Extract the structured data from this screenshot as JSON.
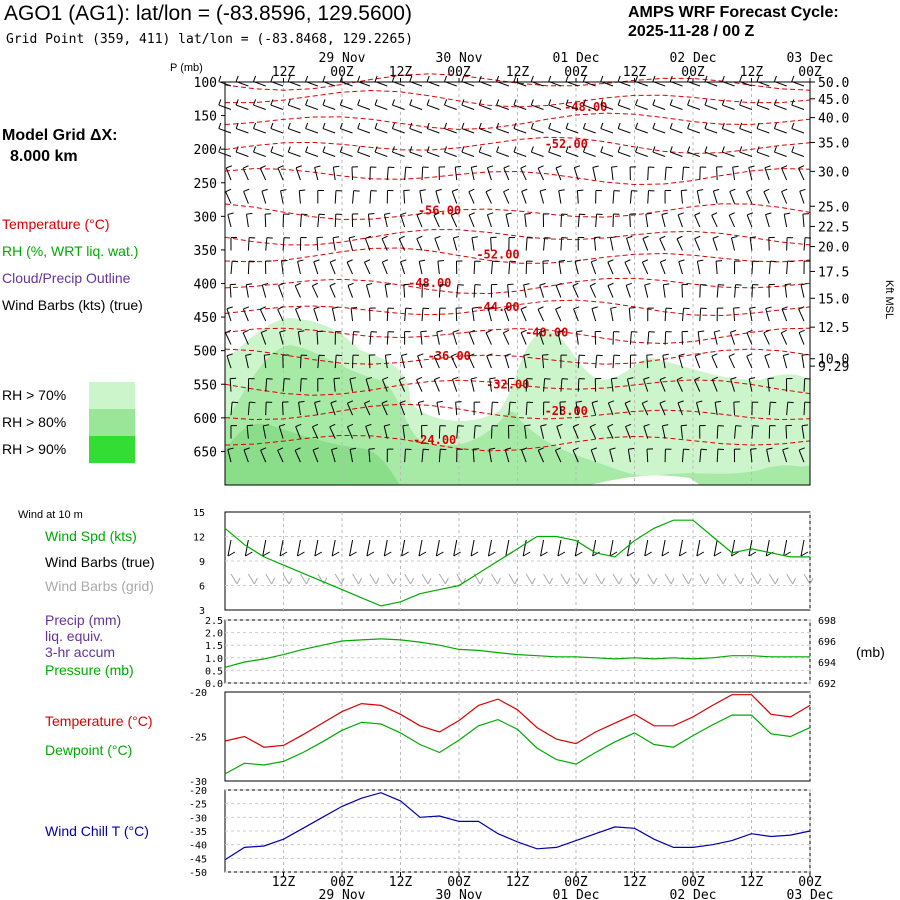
{
  "header": {
    "title": "AGO1 (AG1):  lat/lon = (-83.8596, 129.5600)",
    "grid_point": "Grid Point (359, 411) lat/lon = (-83.8468, 129.2265)",
    "forecast_cycle_label": "AMPS WRF Forecast Cycle:",
    "forecast_cycle_value": "2025-11-28 / 00  Z"
  },
  "model": {
    "grid_label": "Model Grid ΔX:",
    "grid_value": "8.000 km"
  },
  "legend": {
    "temperature": "Temperature (°C)",
    "rh": "RH (%, WRT liq. wat.)",
    "cloud": "Cloud/Precip Outline",
    "wind": "Wind Barbs (kts) (true)",
    "rh70": "RH > 70%",
    "rh80": "RH > 80%",
    "rh90": "RH > 90%"
  },
  "colors": {
    "rh70": "#ccf5cc",
    "rh80": "#99e699",
    "rh90": "#33dd33",
    "temp": "#dd0000",
    "wind": "#000000",
    "cloud": "#663399",
    "green": "#00aa00",
    "red": "#dd0000",
    "blue": "#0000aa",
    "gridbarb": "#aaaaaa"
  },
  "time_axis": {
    "top_ticks": [
      "12Z",
      "00Z",
      "12Z",
      "00Z",
      "12Z",
      "00Z",
      "12Z",
      "00Z",
      "12Z",
      "00Z"
    ],
    "top_dates": [
      "29 Nov",
      "30 Nov",
      "01 Dec",
      "02 Dec",
      "03 Dec"
    ],
    "bottom_ticks": [
      "12Z",
      "00Z",
      "12Z",
      "00Z",
      "12Z",
      "00Z",
      "12Z",
      "00Z",
      "12Z",
      "00Z"
    ],
    "bottom_dates": [
      "29 Nov",
      "30 Nov",
      "01 Dec",
      "02 Dec",
      "03 Dec"
    ],
    "hours": [
      12,
      24,
      36,
      48,
      60,
      72,
      84,
      96,
      108,
      120
    ],
    "range_hours": [
      0,
      120
    ]
  },
  "chart_data": [
    {
      "type": "cross-section",
      "name": "upper",
      "ylabel": "P (mb)",
      "right_label": "Kft MSL",
      "pressure_ticks": [
        100,
        150,
        200,
        250,
        300,
        350,
        400,
        450,
        500,
        550,
        600,
        650
      ],
      "p_range": [
        100,
        700
      ],
      "height_ticks": [
        {
          "p": 100,
          "label": "50.0"
        },
        {
          "p": 125,
          "label": "45.0"
        },
        {
          "p": 153,
          "label": "40.0"
        },
        {
          "p": 190,
          "label": "35.0"
        },
        {
          "p": 233,
          "label": "30.0"
        },
        {
          "p": 285,
          "label": "25.0"
        },
        {
          "p": 315,
          "label": "22.5"
        },
        {
          "p": 345,
          "label": "20.0"
        },
        {
          "p": 382,
          "label": "17.5"
        },
        {
          "p": 422,
          "label": "15.0"
        },
        {
          "p": 465,
          "label": "12.5"
        },
        {
          "p": 512,
          "label": "10.0"
        },
        {
          "p": 523,
          "label": "9.29"
        }
      ],
      "temperature_labels": [
        {
          "label": "-48.00",
          "h": 74,
          "p": 140
        },
        {
          "label": "-52.00",
          "h": 70,
          "p": 195
        },
        {
          "label": "-56.00",
          "h": 44,
          "p": 294
        },
        {
          "label": "-52.00",
          "h": 56,
          "p": 360
        },
        {
          "label": "-48.00",
          "h": 42,
          "p": 402
        },
        {
          "label": "-44.00",
          "h": 56,
          "p": 438
        },
        {
          "label": "-40.00",
          "h": 66,
          "p": 476
        },
        {
          "label": "-36.00",
          "h": 46,
          "p": 511
        },
        {
          "label": "-32.00",
          "h": 58,
          "p": 553
        },
        {
          "label": "-28.00",
          "h": 70,
          "p": 593
        },
        {
          "label": "-24.00",
          "h": 43,
          "p": 636
        }
      ]
    },
    {
      "type": "line",
      "name": "wind10m",
      "ylim": [
        3,
        15
      ],
      "yticks": [
        3,
        6,
        9,
        12,
        15
      ],
      "labels": {
        "top": "Wind at 10 m",
        "spd": "Wind Spd (kts)",
        "barbs_true": "Wind Barbs (true)",
        "barbs_grid": "Wind Barbs (grid)"
      },
      "series": [
        {
          "name": "Wind Spd (kts)",
          "x": [
            0,
            4,
            8,
            12,
            16,
            20,
            24,
            28,
            32,
            36,
            40,
            44,
            48,
            52,
            56,
            60,
            64,
            68,
            72,
            76,
            80,
            84,
            88,
            92,
            96,
            100,
            104,
            108,
            112,
            116,
            120
          ],
          "values": [
            13,
            11,
            9.5,
            8.5,
            7.5,
            6.5,
            5.5,
            4.5,
            3.5,
            4.0,
            5.0,
            5.5,
            6.0,
            7.5,
            9.0,
            10.5,
            12,
            12,
            11.5,
            10,
            9.5,
            11.5,
            13,
            14,
            14,
            12,
            10,
            10.5,
            10,
            9.5,
            9.5
          ]
        }
      ]
    },
    {
      "type": "line",
      "name": "precip_pressure",
      "ylim_left": [
        0,
        2.5
      ],
      "yticks_left": [
        "0.0",
        "0.5",
        "1.0",
        "1.5",
        "2.0",
        "2.5"
      ],
      "ylim_right": [
        692,
        698
      ],
      "yticks_right": [
        "692",
        "694",
        "696",
        "698"
      ],
      "right_unit": "(mb)",
      "labels": {
        "precip": "Precip (mm)",
        "liq": "liq. equiv.",
        "accum": "3-hr accum",
        "pressure": "Pressure (mb)"
      },
      "series": [
        {
          "name": "Pressure (mb)",
          "x": [
            0,
            4,
            8,
            12,
            16,
            20,
            24,
            28,
            32,
            36,
            40,
            44,
            48,
            52,
            56,
            60,
            64,
            68,
            72,
            76,
            80,
            84,
            88,
            92,
            96,
            100,
            104,
            108,
            112,
            116,
            120
          ],
          "values": [
            693.5,
            694.0,
            694.3,
            694.7,
            695.2,
            695.6,
            696.0,
            696.1,
            696.2,
            696.1,
            695.9,
            695.6,
            695.2,
            695.1,
            694.9,
            694.7,
            694.6,
            694.5,
            694.5,
            694.4,
            694.3,
            694.4,
            694.3,
            694.4,
            694.3,
            694.4,
            694.6,
            694.6,
            694.5,
            694.5,
            694.5
          ]
        }
      ]
    },
    {
      "type": "line",
      "name": "temp_dew",
      "ylim": [
        -30,
        -20
      ],
      "yticks": [
        -30,
        -25,
        -20
      ],
      "labels": {
        "temp": "Temperature (°C)",
        "dew": "Dewpoint (°C)"
      },
      "series": [
        {
          "name": "Temperature (°C)",
          "x": [
            0,
            4,
            8,
            12,
            16,
            20,
            24,
            28,
            32,
            36,
            40,
            44,
            48,
            52,
            56,
            60,
            64,
            68,
            72,
            76,
            80,
            84,
            88,
            92,
            96,
            100,
            104,
            108,
            112,
            116,
            120
          ],
          "values": [
            -25.5,
            -25,
            -26.2,
            -26.0,
            -24.8,
            -23.5,
            -22.2,
            -21.3,
            -21.5,
            -22.5,
            -23.8,
            -24.5,
            -23.2,
            -21.5,
            -20.8,
            -22,
            -24,
            -25.3,
            -25.8,
            -24.5,
            -23.5,
            -22.5,
            -23.8,
            -23.8,
            -22.8,
            -21.5,
            -20.3,
            -20.3,
            -22.5,
            -22.8,
            -21.5
          ]
        },
        {
          "name": "Dewpoint (°C)",
          "x": [
            0,
            4,
            8,
            12,
            16,
            20,
            24,
            28,
            32,
            36,
            40,
            44,
            48,
            52,
            56,
            60,
            64,
            68,
            72,
            76,
            80,
            84,
            88,
            92,
            96,
            100,
            104,
            108,
            112,
            116,
            120
          ],
          "values": [
            -29.2,
            -28,
            -28.2,
            -27.8,
            -26.8,
            -25.6,
            -24.3,
            -23.4,
            -23.6,
            -24.6,
            -25.9,
            -26.8,
            -25.4,
            -23.8,
            -23.1,
            -24.2,
            -26.3,
            -27.6,
            -28.1,
            -26.8,
            -25.6,
            -24.6,
            -25.9,
            -26.2,
            -24.9,
            -23.7,
            -22.6,
            -22.6,
            -24.7,
            -25.0,
            -24.0
          ]
        }
      ]
    },
    {
      "type": "line",
      "name": "windchill",
      "ylim": [
        -50,
        -20
      ],
      "yticks": [
        -50,
        -45,
        -40,
        -35,
        -30,
        -25,
        -20
      ],
      "labels": {
        "wc": "Wind Chill T (°C)"
      },
      "series": [
        {
          "name": "Wind Chill T (°C)",
          "x": [
            0,
            4,
            8,
            12,
            16,
            20,
            24,
            28,
            32,
            36,
            40,
            44,
            48,
            52,
            56,
            60,
            64,
            68,
            72,
            76,
            80,
            84,
            88,
            92,
            96,
            100,
            104,
            108,
            112,
            116,
            120
          ],
          "values": [
            -45.5,
            -41,
            -40.5,
            -38,
            -34,
            -30,
            -26,
            -23,
            -21,
            -24,
            -30,
            -29.5,
            -31.5,
            -31.5,
            -36,
            -39,
            -41.5,
            -41,
            -38.5,
            -36,
            -33.5,
            -34,
            -38,
            -41,
            -41,
            -40,
            -38.5,
            -36,
            -37,
            -36.5,
            -35
          ]
        }
      ]
    }
  ]
}
